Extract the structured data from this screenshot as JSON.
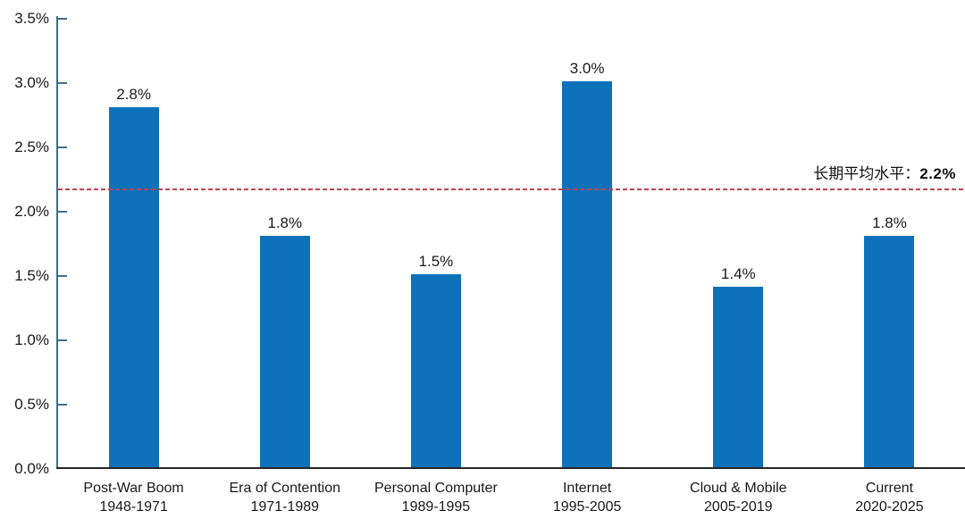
{
  "chart_data": {
    "type": "bar",
    "title": "",
    "categories": [
      {
        "name": "Post-War Boom",
        "period": "1948-1971"
      },
      {
        "name": "Era of Contention",
        "period": "1971-1989"
      },
      {
        "name": "Personal Computer",
        "period": "1989-1995"
      },
      {
        "name": "Internet",
        "period": "1995-2005"
      },
      {
        "name": "Cloud & Mobile",
        "period": "2005-2019"
      },
      {
        "name": "Current",
        "period": "2020-2025"
      }
    ],
    "values": [
      2.8,
      1.8,
      1.5,
      3.0,
      1.4,
      1.8
    ],
    "value_labels": [
      "2.8%",
      "1.8%",
      "1.5%",
      "3.0%",
      "1.4%",
      "1.8%"
    ],
    "unit": "%",
    "ylim": [
      0,
      3.5
    ],
    "ytick_interval": 0.5,
    "yticks": [
      "3.5%",
      "3.0%",
      "2.5%",
      "2.0%",
      "1.5%",
      "1.0%",
      "0.5%",
      "0.0%"
    ],
    "grid": false,
    "legend": "none",
    "average_line": {
      "label": "长期平均水平：",
      "value_label": "2.2%",
      "value": 2.2,
      "drawn_at": 2.15,
      "style": "dashed",
      "color": "#bd4257"
    },
    "colors": {
      "bar": "#0d72b9",
      "y_axis": "#3e6f90",
      "x_axis": "#262626",
      "text": "#191919"
    }
  }
}
